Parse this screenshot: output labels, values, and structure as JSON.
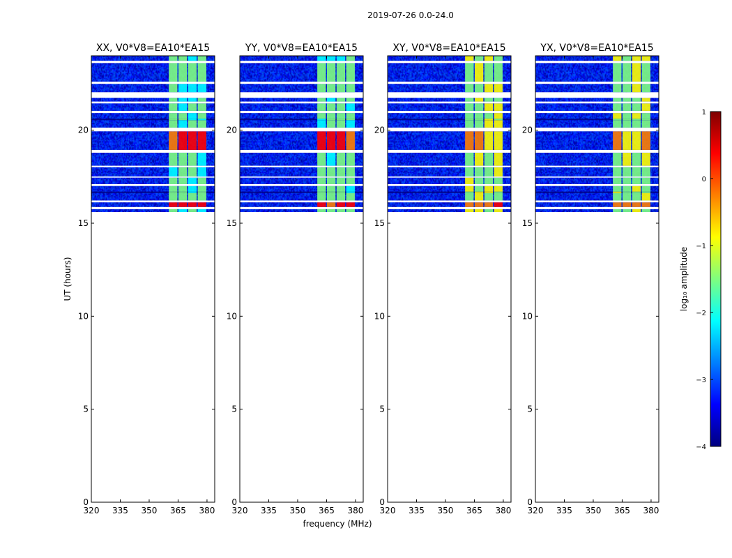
{
  "figure": {
    "suptitle": "2019-07-26 0.0-24.0"
  },
  "chart_data": {
    "type": "heatmap",
    "xlabel": "frequency (MHz)",
    "ylabel": "UT (hours)",
    "xlim": [
      320,
      384
    ],
    "ylim": [
      0,
      24
    ],
    "xticks": [
      "320",
      "335",
      "350",
      "365",
      "380"
    ],
    "xtick_values": [
      320,
      335,
      350,
      365,
      380
    ],
    "yticks": [
      "0",
      "5",
      "10",
      "15",
      "20"
    ],
    "ytick_values": [
      0,
      5,
      10,
      15,
      20
    ],
    "data_time_range": [
      15.6,
      24.0
    ],
    "rfi_band_mhz": [
      360,
      380
    ],
    "panels": [
      {
        "title": "XX, V0*V8=EA10*EA15",
        "polarization": "XX"
      },
      {
        "title": "YY, V0*V8=EA10*EA15",
        "polarization": "YY"
      },
      {
        "title": "XY, V0*V8=EA10*EA15",
        "polarization": "XY"
      },
      {
        "title": "YX, V0*V8=EA10*EA15",
        "polarization": "YX"
      }
    ],
    "colorbar": {
      "label": "log₁₀ amplitude",
      "range": [
        -4,
        1
      ],
      "ticks": [
        "−4",
        "−3",
        "−2",
        "−1",
        "0",
        "1"
      ],
      "tick_values": [
        -4,
        -3,
        -2,
        -1,
        0,
        1
      ],
      "colormap": "jet",
      "colors": [
        "#00007f",
        "#0000ff",
        "#007fff",
        "#00ffff",
        "#7fff7f",
        "#ffff00",
        "#ff7f00",
        "#ff0000",
        "#7f0000"
      ]
    }
  }
}
